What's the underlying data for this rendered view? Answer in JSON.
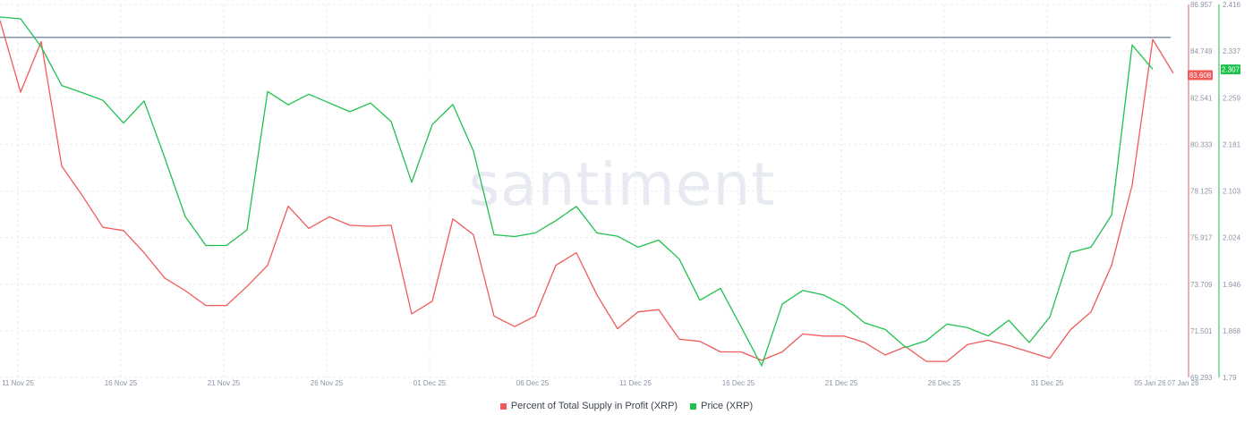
{
  "chart_data": {
    "type": "line",
    "watermark": "santiment",
    "x_tick_labels": [
      "11 Nov 25",
      "16 Nov 25",
      "21 Nov 25",
      "26 Nov 25",
      "01 Dec 25",
      "06 Dec 25",
      "11 Dec 25",
      "16 Dec 25",
      "21 Dec 25",
      "26 Dec 25",
      "31 Dec 25",
      "05 Jan 26",
      "07 Jan 26"
    ],
    "left_axis": {
      "ticks": [
        "86.957",
        "84.749",
        "82.541",
        "80.333",
        "78.125",
        "75.917",
        "73.709",
        "71.501",
        "69.293"
      ],
      "ylim": [
        69.293,
        86.957
      ],
      "color": "#f05a5a"
    },
    "right_axis": {
      "ticks": [
        "2.416",
        "2.337",
        "2.259",
        "2.181",
        "2.103",
        "2.024",
        "1.946",
        "1.868",
        "1.79"
      ],
      "ylim": [
        1.79,
        2.416
      ],
      "color": "#1fc14e"
    },
    "reference_line": {
      "value": 85.4,
      "axis": "left",
      "color": "#8791b0"
    },
    "current_value_labels": {
      "profit": "83.608",
      "price": "2.307"
    },
    "series": [
      {
        "name": "Percent of Total Supply in Profit (XRP)",
        "color": "#f05a5a",
        "axis": "left",
        "values": [
          86.2,
          82.8,
          85.2,
          79.3,
          77.9,
          76.4,
          76.25,
          75.2,
          74.0,
          73.4,
          72.7,
          72.7,
          73.6,
          74.6,
          77.4,
          76.35,
          76.9,
          76.5,
          76.45,
          76.5,
          72.3,
          72.9,
          76.8,
          76.05,
          72.2,
          71.7,
          72.2,
          74.6,
          75.2,
          73.2,
          71.6,
          72.4,
          72.5,
          71.1,
          71.0,
          70.5,
          70.5,
          70.1,
          70.5,
          71.35,
          71.25,
          71.25,
          70.95,
          70.35,
          70.75,
          70.05,
          70.05,
          70.85,
          71.05,
          70.8,
          70.5,
          70.2,
          71.55,
          72.4,
          74.6,
          78.4,
          85.3,
          83.7
        ]
      },
      {
        "name": "Price (XRP)",
        "color": "#1fc14e",
        "axis": "right",
        "values": [
          2.395,
          2.392,
          2.345,
          2.28,
          2.268,
          2.255,
          2.217,
          2.254,
          2.159,
          2.06,
          2.0115,
          2.0115,
          2.0375,
          2.27,
          2.2475,
          2.2655,
          2.2505,
          2.236,
          2.2505,
          2.2195,
          2.1175,
          2.2145,
          2.248,
          2.17,
          2.0295,
          2.0265,
          2.0325,
          2.053,
          2.077,
          2.0325,
          2.027,
          2.0085,
          2.0205,
          1.9885,
          1.9195,
          1.9395,
          1.875,
          1.8095,
          1.913,
          1.936,
          1.9285,
          1.9105,
          1.8815,
          1.8705,
          1.8405,
          1.8515,
          1.8795,
          1.8735,
          1.8595,
          1.886,
          1.8485,
          1.8915,
          1.9995,
          2.0085,
          2.0625,
          2.348,
          2.307
        ]
      }
    ]
  }
}
